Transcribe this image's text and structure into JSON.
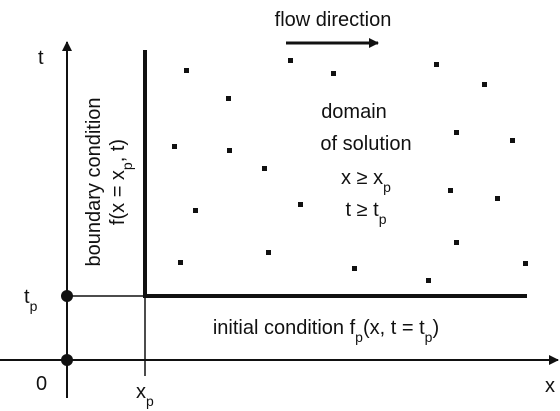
{
  "labels": {
    "flow": [
      {
        "text": "flow direction"
      }
    ],
    "t_axis": [
      {
        "text": "t"
      }
    ],
    "x_axis": [
      {
        "text": "x"
      }
    ],
    "origin": [
      {
        "text": "0"
      }
    ],
    "t_p": [
      {
        "text": "t"
      },
      {
        "sub": "p"
      }
    ],
    "x_p": [
      {
        "text": "x"
      },
      {
        "sub": "p"
      }
    ],
    "boundary_1": [
      {
        "text": "boundary condition"
      }
    ],
    "boundary_2": [
      {
        "text": "f(x = x"
      },
      {
        "sub": "p"
      },
      {
        "text": ", t)"
      }
    ],
    "domain_1": [
      {
        "text": "domain"
      }
    ],
    "domain_2": [
      {
        "text": "of solution"
      }
    ],
    "domain_3": [
      {
        "text": "x ≥ x"
      },
      {
        "sub": "p"
      }
    ],
    "domain_4": [
      {
        "text": "t ≥ t"
      },
      {
        "sub": "p"
      }
    ],
    "initial": [
      {
        "text": "initial condition f"
      },
      {
        "sub": "p"
      },
      {
        "text": "(x, t = t"
      },
      {
        "sub": "p"
      },
      {
        "text": ")"
      }
    ]
  }
}
